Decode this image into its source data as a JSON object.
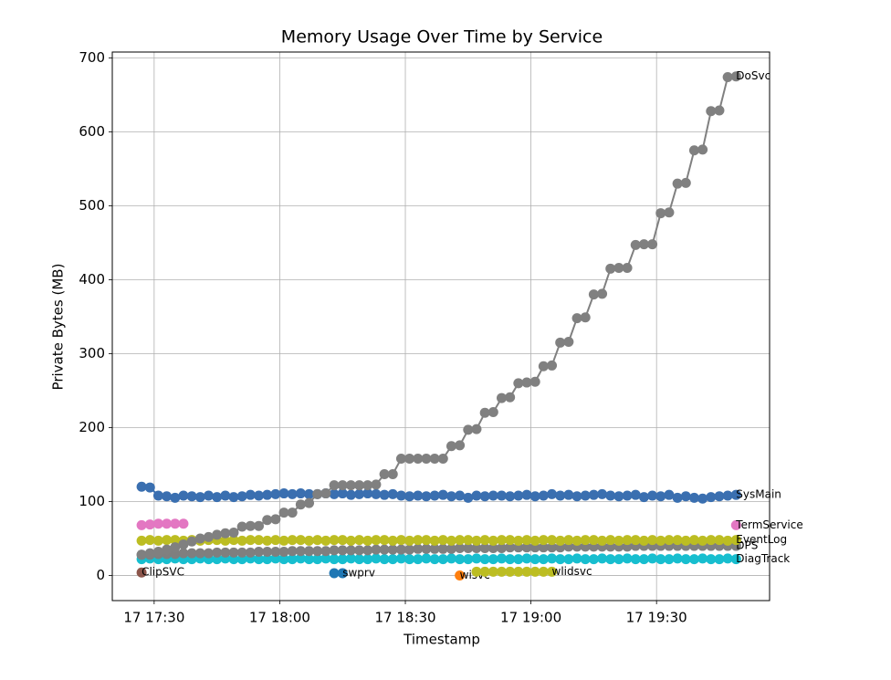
{
  "chart_data": {
    "type": "line",
    "title": "Memory Usage Over Time by Service",
    "xlabel": "Timestamp",
    "ylabel": "Private Bytes (MB)",
    "grid": true,
    "xlim": [
      "17 17:20",
      "17 19:57"
    ],
    "xticks": [
      "17 17:30",
      "17 18:00",
      "17 18:30",
      "17 19:00",
      "17 19:30"
    ],
    "ylim": [
      -34,
      708
    ],
    "yticks": [
      0,
      100,
      200,
      300,
      400,
      500,
      600,
      700
    ],
    "x": [
      "17 17:27",
      "17 17:29",
      "17 17:31",
      "17 17:33",
      "17 17:35",
      "17 17:37",
      "17 17:39",
      "17 17:41",
      "17 17:43",
      "17 17:45",
      "17 17:47",
      "17 17:49",
      "17 17:51",
      "17 17:53",
      "17 17:55",
      "17 17:57",
      "17 17:59",
      "17 18:01",
      "17 18:03",
      "17 18:05",
      "17 18:07",
      "17 18:09",
      "17 18:11",
      "17 18:13",
      "17 18:15",
      "17 18:17",
      "17 18:19",
      "17 18:21",
      "17 18:23",
      "17 18:25",
      "17 18:27",
      "17 18:29",
      "17 18:31",
      "17 18:33",
      "17 18:35",
      "17 18:37",
      "17 18:39",
      "17 18:41",
      "17 18:43",
      "17 18:45",
      "17 18:47",
      "17 18:49",
      "17 18:51",
      "17 18:53",
      "17 18:55",
      "17 18:57",
      "17 18:59",
      "17 19:01",
      "17 19:03",
      "17 19:05",
      "17 19:07",
      "17 19:09",
      "17 19:11",
      "17 19:13",
      "17 19:15",
      "17 19:17",
      "17 19:19",
      "17 19:21",
      "17 19:23",
      "17 19:25",
      "17 19:27",
      "17 19:29",
      "17 19:31",
      "17 19:33",
      "17 19:35",
      "17 19:37",
      "17 19:39",
      "17 19:41",
      "17 19:43",
      "17 19:45",
      "17 19:47",
      "17 19:49"
    ],
    "series": [
      {
        "name": "DiagTrack",
        "color": "#17becf",
        "values": [
          22,
          23,
          22,
          22,
          23,
          22,
          22,
          23,
          22,
          22,
          23,
          22,
          22,
          23,
          22,
          22,
          23,
          22,
          22,
          23,
          22,
          22,
          23,
          22,
          22,
          23,
          22,
          22,
          23,
          22,
          22,
          23,
          22,
          22,
          23,
          22,
          22,
          23,
          22,
          22,
          23,
          22,
          22,
          23,
          22,
          22,
          23,
          22,
          22,
          23,
          22,
          22,
          23,
          22,
          22,
          23,
          22,
          22,
          23,
          22,
          22,
          23,
          22,
          22,
          23,
          22,
          22,
          23,
          22,
          22,
          23,
          22
        ]
      },
      {
        "name": "DPS",
        "color": "#7f7f7f",
        "values": [
          28,
          28,
          29,
          29,
          29,
          30,
          30,
          30,
          30,
          31,
          31,
          31,
          31,
          31,
          32,
          32,
          32,
          32,
          33,
          33,
          33,
          33,
          33,
          34,
          34,
          34,
          34,
          34,
          35,
          35,
          35,
          35,
          35,
          36,
          36,
          36,
          36,
          36,
          37,
          37,
          37,
          37,
          37,
          37,
          38,
          38,
          38,
          38,
          38,
          38,
          38,
          39,
          39,
          39,
          39,
          39,
          39,
          39,
          39,
          40,
          40,
          40,
          40,
          40,
          40,
          40,
          40,
          40,
          40,
          40,
          40,
          40
        ]
      },
      {
        "name": "EventLog",
        "color": "#bcbd22",
        "values": [
          47,
          48,
          47,
          48,
          48,
          47,
          48,
          47,
          48,
          48,
          47,
          48,
          47,
          48,
          48,
          47,
          48,
          47,
          48,
          48,
          47,
          48,
          47,
          48,
          48,
          47,
          48,
          47,
          48,
          48,
          47,
          48,
          47,
          48,
          48,
          47,
          48,
          47,
          48,
          48,
          47,
          48,
          47,
          48,
          48,
          47,
          48,
          47,
          48,
          48,
          47,
          48,
          47,
          48,
          48,
          47,
          48,
          47,
          48,
          48,
          47,
          48,
          47,
          48,
          48,
          47,
          48,
          47,
          48,
          48,
          47,
          48
        ]
      },
      {
        "name": "TermService",
        "color": "#e377c2",
        "values": [
          68,
          69,
          70,
          70,
          70,
          70,
          null,
          null,
          null,
          null,
          null,
          null,
          null,
          null,
          null,
          null,
          null,
          null,
          null,
          null,
          null,
          null,
          null,
          null,
          null,
          null,
          null,
          null,
          null,
          null,
          null,
          null,
          null,
          null,
          null,
          null,
          null,
          null,
          null,
          null,
          null,
          null,
          null,
          null,
          null,
          null,
          null,
          null,
          null,
          null,
          null,
          null,
          null,
          null,
          null,
          null,
          null,
          null,
          null,
          null,
          null,
          null,
          null,
          null,
          null,
          null,
          null,
          null,
          null,
          null,
          null,
          68
        ]
      },
      {
        "name": "ClipSVC",
        "color": "#8c564b",
        "values": [
          4,
          null,
          null,
          null,
          null,
          null,
          null,
          null,
          null,
          null,
          null,
          null,
          null,
          null,
          null,
          null,
          null,
          null,
          null,
          null,
          null,
          null,
          null,
          null,
          null,
          null,
          null,
          null,
          null,
          null,
          null,
          null,
          null,
          null,
          null,
          null,
          null,
          null,
          null,
          null,
          null,
          null,
          null,
          null,
          null,
          null,
          null,
          null,
          null,
          null,
          null,
          null,
          null,
          null,
          null,
          null,
          null,
          null,
          null,
          null,
          null,
          null,
          null,
          null,
          null,
          null,
          null,
          null,
          null,
          null,
          null,
          null
        ]
      },
      {
        "name": "swprv",
        "color": "#1f77b4",
        "values": [
          null,
          null,
          null,
          null,
          null,
          null,
          null,
          null,
          null,
          null,
          null,
          null,
          null,
          null,
          null,
          null,
          null,
          null,
          null,
          null,
          null,
          null,
          null,
          3,
          3,
          null,
          null,
          null,
          null,
          null,
          null,
          null,
          null,
          null,
          null,
          null,
          null,
          null,
          null,
          null,
          null,
          null,
          null,
          null,
          null,
          null,
          null,
          null,
          null,
          null,
          null,
          null,
          null,
          null,
          null,
          null,
          null,
          null,
          null,
          null,
          null,
          null,
          null,
          null,
          null,
          null,
          null,
          null,
          null,
          null,
          null,
          null
        ]
      },
      {
        "name": "wisvc",
        "color": "#ff7f0e",
        "values": [
          null,
          null,
          null,
          null,
          null,
          null,
          null,
          null,
          null,
          null,
          null,
          null,
          null,
          null,
          null,
          null,
          null,
          null,
          null,
          null,
          null,
          null,
          null,
          null,
          null,
          null,
          null,
          null,
          null,
          null,
          null,
          null,
          null,
          null,
          null,
          null,
          null,
          null,
          0,
          null,
          null,
          null,
          null,
          null,
          null,
          null,
          null,
          null,
          null,
          null,
          null,
          null,
          null,
          null,
          null,
          null,
          null,
          null,
          null,
          null,
          null,
          null,
          null,
          null,
          null,
          null,
          null,
          null,
          null,
          null,
          null,
          null
        ]
      },
      {
        "name": "wlidsvc",
        "color": "#bcbd22",
        "values": [
          null,
          null,
          null,
          null,
          null,
          null,
          null,
          null,
          null,
          null,
          null,
          null,
          null,
          null,
          null,
          null,
          null,
          null,
          null,
          null,
          null,
          null,
          null,
          null,
          null,
          null,
          null,
          null,
          null,
          null,
          null,
          null,
          null,
          null,
          null,
          null,
          null,
          null,
          null,
          null,
          5,
          5,
          5,
          5,
          5,
          5,
          5,
          5,
          5,
          5,
          null,
          null,
          null,
          null,
          null,
          null,
          null,
          null,
          null,
          null,
          null,
          null,
          null,
          null,
          null,
          null,
          null,
          null,
          null,
          null,
          null,
          null
        ]
      },
      {
        "name": "SysMain",
        "color": "#3a6fb0",
        "values": [
          120,
          119,
          108,
          107,
          105,
          108,
          107,
          106,
          108,
          106,
          108,
          106,
          107,
          109,
          108,
          109,
          110,
          111,
          110,
          111,
          110,
          110,
          111,
          110,
          111,
          109,
          110,
          111,
          110,
          109,
          110,
          108,
          107,
          108,
          107,
          108,
          109,
          107,
          108,
          105,
          108,
          107,
          108,
          108,
          107,
          108,
          109,
          107,
          108,
          110,
          108,
          109,
          107,
          108,
          109,
          110,
          108,
          107,
          108,
          109,
          106,
          108,
          107,
          109,
          105,
          107,
          105,
          104,
          106,
          107,
          108,
          109
        ]
      },
      {
        "name": "DoSvc",
        "color": "#808080",
        "values": [
          28,
          30,
          32,
          35,
          38,
          42,
          46,
          50,
          52,
          55,
          57,
          58,
          66,
          67,
          67,
          75,
          76,
          85,
          85,
          96,
          98,
          110,
          111,
          122,
          122,
          122,
          122,
          122,
          123,
          137,
          137,
          158,
          158,
          158,
          158,
          158,
          158,
          175,
          176,
          197,
          198,
          220,
          221,
          240,
          241,
          260,
          261,
          262,
          283,
          284,
          315,
          316,
          348,
          349,
          380,
          381,
          415,
          416,
          416,
          447,
          448,
          448,
          490,
          491,
          530,
          531,
          575,
          576,
          628,
          629,
          674,
          675
        ]
      }
    ]
  }
}
